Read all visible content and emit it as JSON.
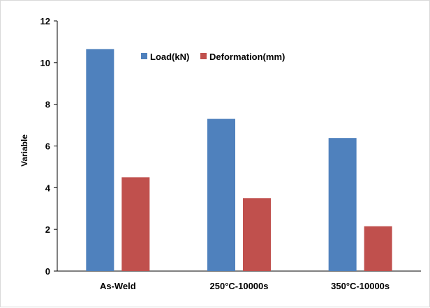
{
  "chart_data": {
    "type": "bar",
    "title": "",
    "xlabel": "",
    "ylabel": "Variable",
    "categories": [
      "As-Weld",
      "250°C-10000s",
      "350°C-10000s"
    ],
    "series": [
      {
        "name": "Load(kN)",
        "color": "#4F81BD",
        "values": [
          10.65,
          7.3,
          6.38
        ]
      },
      {
        "name": "Deformation(mm)",
        "color": "#C0504D",
        "values": [
          4.5,
          3.5,
          2.15
        ]
      }
    ],
    "ylim": [
      0,
      12
    ],
    "yticks": [
      "0",
      "2",
      "4",
      "6",
      "8",
      "10",
      "12"
    ],
    "grid": false,
    "legend_position": "top-center"
  }
}
